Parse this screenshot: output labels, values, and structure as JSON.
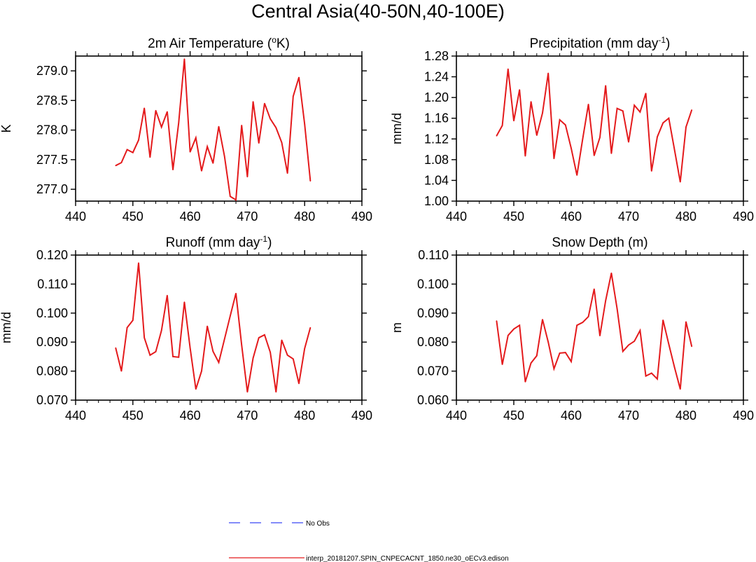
{
  "figure_title": "Central Asia(40-50N,40-100E)",
  "legend": [
    {
      "label": "No Obs",
      "color": "#3b48f5",
      "style": "dashed"
    },
    {
      "label": "interp_20181207.SPIN_CNPECACNT_1850.ne30_oECv3.edison",
      "color": "#e41a1c",
      "style": "solid"
    }
  ],
  "colors": {
    "series": "#e41a1c",
    "axes": "#000000"
  },
  "chart_data": [
    {
      "type": "line",
      "title": "2m Air Temperature (",
      "title_sup": "o",
      "title_after": "K)",
      "xlabel": "",
      "ylabel": "K",
      "xlim": [
        440,
        490
      ],
      "ylim": [
        276.8,
        279.25
      ],
      "xticks": [
        440,
        450,
        460,
        470,
        480,
        490
      ],
      "yticks": [
        277.0,
        277.5,
        278.0,
        278.5,
        279.0
      ],
      "yticklabels": [
        "277.0",
        "277.5",
        "278.0",
        "278.5",
        "279.0"
      ],
      "series": [
        {
          "name": "interp_20181207.SPIN_CNPECACNT_1850.ne30_oECv3.edison",
          "x": [
            447,
            448,
            449,
            450,
            451,
            452,
            453,
            454,
            455,
            456,
            457,
            458,
            459,
            460,
            461,
            462,
            463,
            464,
            465,
            466,
            467,
            468,
            469,
            470,
            471,
            472,
            473,
            474,
            475,
            476,
            477,
            478,
            479,
            480,
            481
          ],
          "values": [
            277.4,
            277.45,
            277.67,
            277.62,
            277.83,
            278.37,
            277.54,
            278.33,
            278.05,
            278.31,
            277.33,
            278.12,
            279.2,
            277.63,
            277.87,
            277.31,
            277.72,
            277.44,
            278.06,
            277.56,
            276.88,
            276.82,
            278.08,
            277.21,
            278.48,
            277.78,
            278.45,
            278.19,
            278.04,
            277.79,
            277.27,
            278.57,
            278.89,
            278.1,
            277.14
          ]
        }
      ]
    },
    {
      "type": "line",
      "title": "Precipitation (mm day",
      "title_sup": "-1",
      "title_after": ")",
      "xlabel": "",
      "ylabel": "mm/d",
      "xlim": [
        440,
        490
      ],
      "ylim": [
        1.0,
        1.28
      ],
      "xticks": [
        440,
        450,
        460,
        470,
        480,
        490
      ],
      "yticks": [
        1.0,
        1.04,
        1.08,
        1.12,
        1.16,
        1.2,
        1.24,
        1.28
      ],
      "yticklabels": [
        "1.00",
        "1.04",
        "1.08",
        "1.12",
        "1.16",
        "1.20",
        "1.24",
        "1.28"
      ],
      "series": [
        {
          "name": "interp_20181207.SPIN_CNPECACNT_1850.ne30_oECv3.edison",
          "x": [
            447,
            448,
            449,
            450,
            451,
            452,
            453,
            454,
            455,
            456,
            457,
            458,
            459,
            460,
            461,
            462,
            463,
            464,
            465,
            466,
            467,
            468,
            469,
            470,
            471,
            472,
            473,
            474,
            475,
            476,
            477,
            478,
            479,
            480,
            481
          ],
          "values": [
            1.126,
            1.146,
            1.255,
            1.155,
            1.215,
            1.087,
            1.192,
            1.127,
            1.17,
            1.247,
            1.082,
            1.157,
            1.147,
            1.102,
            1.05,
            1.12,
            1.187,
            1.088,
            1.123,
            1.223,
            1.092,
            1.179,
            1.174,
            1.114,
            1.185,
            1.172,
            1.208,
            1.058,
            1.124,
            1.151,
            1.16,
            1.099,
            1.037,
            1.143,
            1.176
          ]
        }
      ]
    },
    {
      "type": "line",
      "title": "Runoff (mm day",
      "title_sup": "-1",
      "title_after": ")",
      "xlabel": "",
      "ylabel": "mm/d",
      "xlim": [
        440,
        490
      ],
      "ylim": [
        0.07,
        0.12
      ],
      "xticks": [
        440,
        450,
        460,
        470,
        480,
        490
      ],
      "yticks": [
        0.07,
        0.08,
        0.09,
        0.1,
        0.11,
        0.12
      ],
      "yticklabels": [
        "0.070",
        "0.080",
        "0.090",
        "0.100",
        "0.110",
        "0.120"
      ],
      "series": [
        {
          "name": "interp_20181207.SPIN_CNPECACNT_1850.ne30_oECv3.edison",
          "x": [
            447,
            448,
            449,
            450,
            451,
            452,
            453,
            454,
            455,
            456,
            457,
            458,
            459,
            460,
            461,
            462,
            463,
            464,
            465,
            466,
            467,
            468,
            469,
            470,
            471,
            472,
            473,
            474,
            475,
            476,
            477,
            478,
            479,
            480,
            481
          ],
          "values": [
            0.088,
            0.08,
            0.095,
            0.0975,
            0.1173,
            0.0915,
            0.0855,
            0.0867,
            0.094,
            0.1061,
            0.085,
            0.0848,
            0.1038,
            0.088,
            0.0738,
            0.08,
            0.0955,
            0.0868,
            0.083,
            0.091,
            0.099,
            0.1068,
            0.089,
            0.0728,
            0.0845,
            0.0915,
            0.0925,
            0.0865,
            0.0728,
            0.0907,
            0.0855,
            0.0842,
            0.0757,
            0.0878,
            0.095
          ]
        }
      ]
    },
    {
      "type": "line",
      "title": "Snow Depth (m)",
      "title_sup": "",
      "title_after": "",
      "xlabel": "",
      "ylabel": "m",
      "xlim": [
        440,
        490
      ],
      "ylim": [
        0.06,
        0.11
      ],
      "xticks": [
        440,
        450,
        460,
        470,
        480,
        490
      ],
      "yticks": [
        0.06,
        0.07,
        0.08,
        0.09,
        0.1,
        0.11
      ],
      "yticklabels": [
        "0.060",
        "0.070",
        "0.080",
        "0.090",
        "0.100",
        "0.110"
      ],
      "series": [
        {
          "name": "interp_20181207.SPIN_CNPECACNT_1850.ne30_oECv3.edison",
          "x": [
            447,
            448,
            449,
            450,
            451,
            452,
            453,
            454,
            455,
            456,
            457,
            458,
            459,
            460,
            461,
            462,
            463,
            464,
            465,
            466,
            467,
            468,
            469,
            470,
            471,
            472,
            473,
            474,
            475,
            476,
            477,
            478,
            479,
            480,
            481
          ],
          "values": [
            0.0873,
            0.0723,
            0.0823,
            0.0845,
            0.0858,
            0.0663,
            0.0728,
            0.0753,
            0.0878,
            0.08,
            0.0708,
            0.0762,
            0.0764,
            0.0733,
            0.0858,
            0.0868,
            0.0888,
            0.0983,
            0.0822,
            0.0943,
            0.1038,
            0.0915,
            0.0768,
            0.079,
            0.0803,
            0.084,
            0.0683,
            0.0693,
            0.0673,
            0.0876,
            0.0793,
            0.0713,
            0.0638,
            0.087,
            0.0785
          ]
        }
      ]
    }
  ]
}
